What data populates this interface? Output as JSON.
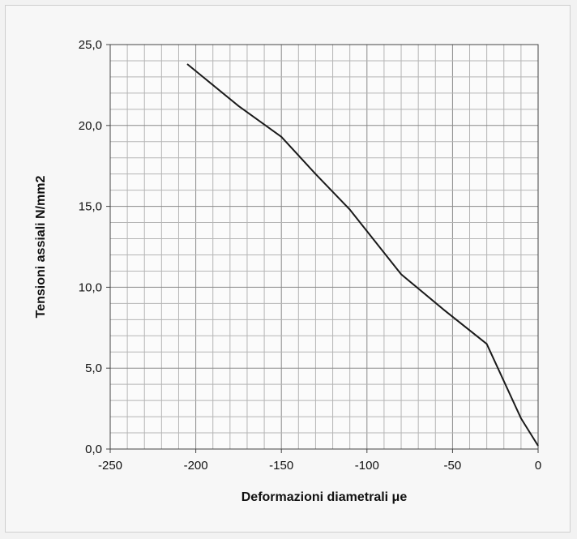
{
  "chart_data": {
    "type": "line",
    "xlabel": "Deformazioni diametrali μe",
    "ylabel": "Tensioni assiali N/mm2",
    "xlim": [
      -250,
      0
    ],
    "ylim": [
      0,
      25
    ],
    "x_ticks": [
      -250,
      -200,
      -150,
      -100,
      -50,
      0
    ],
    "x_tick_labels": [
      "-250",
      "-200",
      "-150",
      "-100",
      "-50",
      "0"
    ],
    "y_ticks": [
      0,
      5,
      10,
      15,
      20,
      25
    ],
    "y_tick_labels": [
      "0,0",
      "5,0",
      "10,0",
      "15,0",
      "20,0",
      "25,0"
    ],
    "grid": true,
    "minor_grid": {
      "x_step": 10,
      "y_step": 1
    },
    "legend": "none",
    "line_color": "#1a1a1a",
    "series": [
      {
        "x": [
          -205,
          -175,
          -150,
          -130,
          -110,
          -80,
          -55,
          -30,
          -10,
          0
        ],
        "y": [
          23.8,
          21.2,
          19.3,
          17.0,
          14.8,
          10.8,
          8.6,
          6.5,
          1.9,
          0.2
        ]
      }
    ]
  }
}
